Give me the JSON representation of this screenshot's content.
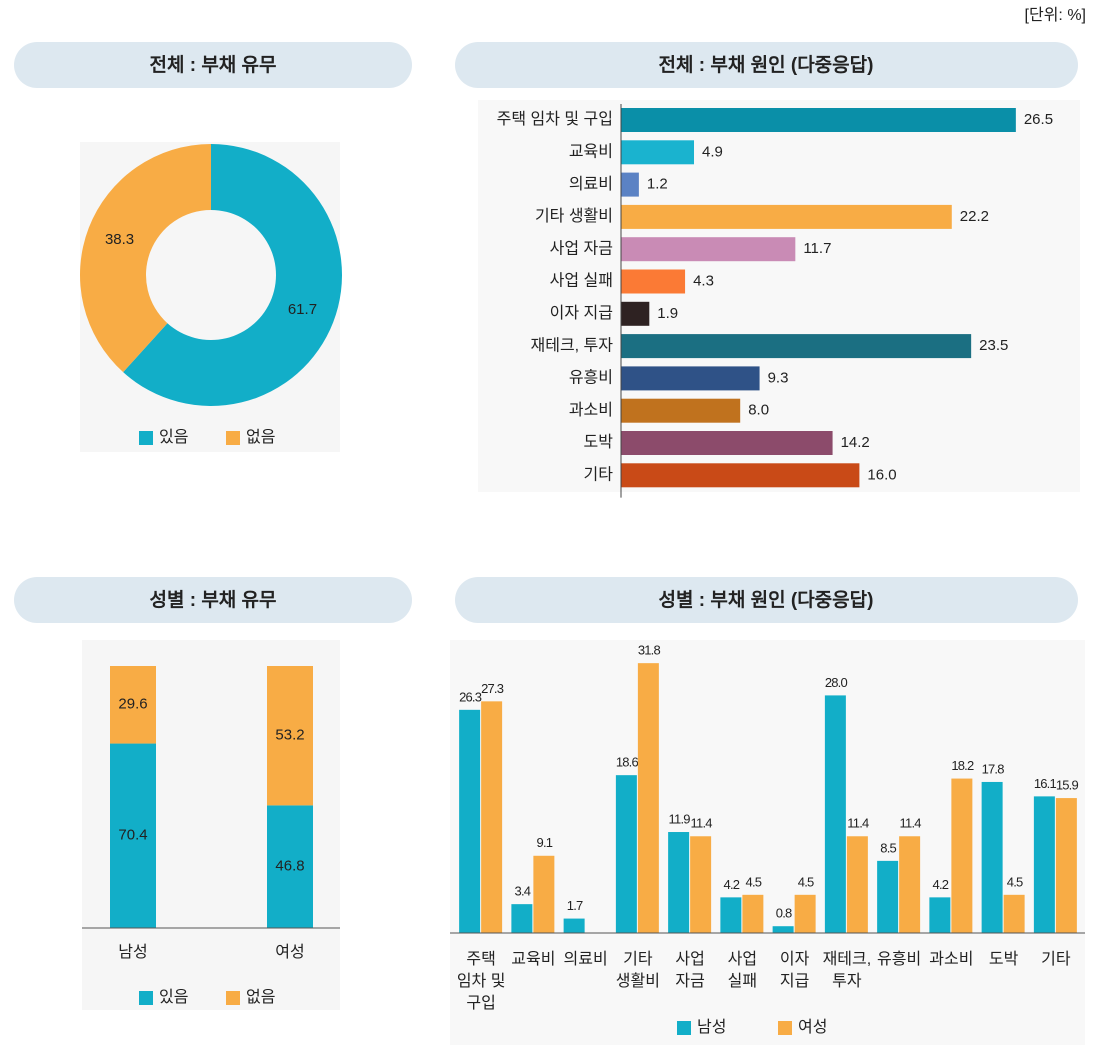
{
  "unit": "[단위: %]",
  "chart_data": [
    {
      "type": "donut",
      "title": "전체 : 부채 유무",
      "categories": [
        "있음",
        "없음"
      ],
      "values": [
        61.7,
        38.3
      ],
      "colors": [
        "#12aec8",
        "#f8ac45"
      ]
    },
    {
      "type": "hbar",
      "title": "전체 : 부채 원인 (다중응답)",
      "categories": [
        "주택 임차 및 구입",
        "교육비",
        "의료비",
        "기타 생활비",
        "사업 자금",
        "사업 실패",
        "이자 지급",
        "재테크, 투자",
        "유흥비",
        "과소비",
        "도박",
        "기타"
      ],
      "values": [
        26.5,
        4.9,
        1.2,
        22.2,
        11.7,
        4.3,
        1.9,
        23.5,
        9.3,
        8,
        14.2,
        16
      ],
      "value_labels": [
        "26.5",
        "4.9",
        "1.2",
        "22.2",
        "11.7",
        "4.3",
        "1.9",
        "23.5",
        "9.3",
        "8.0",
        "14.2",
        "16.0"
      ],
      "colors": [
        "#0a8fa8",
        "#1ab3cf",
        "#5b82c4",
        "#f8ac45",
        "#c98bb5",
        "#fb7a35",
        "#2e2222",
        "#1b6f82",
        "#2f5287",
        "#c0721e",
        "#8c4b6b",
        "#c94a17"
      ],
      "xlim": [
        0,
        30
      ]
    },
    {
      "type": "stacked",
      "title": "성별 : 부채 유무",
      "categories": [
        "남성",
        "여성"
      ],
      "series": [
        {
          "name": "있음",
          "color": "#12aec8",
          "values": [
            70.4,
            46.8
          ]
        },
        {
          "name": "없음",
          "color": "#f8ac45",
          "values": [
            29.6,
            53.2
          ]
        }
      ],
      "ylim": [
        0,
        100
      ]
    },
    {
      "type": "grouped",
      "title": "성별 : 부채 원인 (다중응답)",
      "categories": [
        "주택\n임차 및\n구입",
        "교육비",
        "의료비",
        "기타\n생활비",
        "사업\n자금",
        "사업\n실패",
        "이자\n지급",
        "재테크,\n투자",
        "유흥비",
        "과소비",
        "도박",
        "기타"
      ],
      "series": [
        {
          "name": "남성",
          "color": "#12aec8",
          "values": [
            26.3,
            3.4,
            1.7,
            18.6,
            11.9,
            4.2,
            0.8,
            28,
            8.5,
            4.2,
            17.8,
            16.1
          ],
          "value_labels": [
            "26.3",
            "3.4",
            "1.7",
            "18.6",
            "11.9",
            "4.2",
            "0.8",
            "28.0",
            "8.5",
            "4.2",
            "17.8",
            "16.1"
          ]
        },
        {
          "name": "여성",
          "color": "#f8ac45",
          "values": [
            27.3,
            9.1,
            null,
            31.8,
            11.4,
            4.5,
            4.5,
            11.4,
            11.4,
            18.2,
            4.5,
            15.9
          ],
          "value_labels": [
            "27.3",
            "9.1",
            null,
            "31.8",
            "11.4",
            "4.5",
            "4.5",
            "11.4",
            "11.4",
            "18.2",
            "4.5",
            "15.9"
          ]
        }
      ],
      "ylim": [
        0,
        35
      ]
    }
  ]
}
